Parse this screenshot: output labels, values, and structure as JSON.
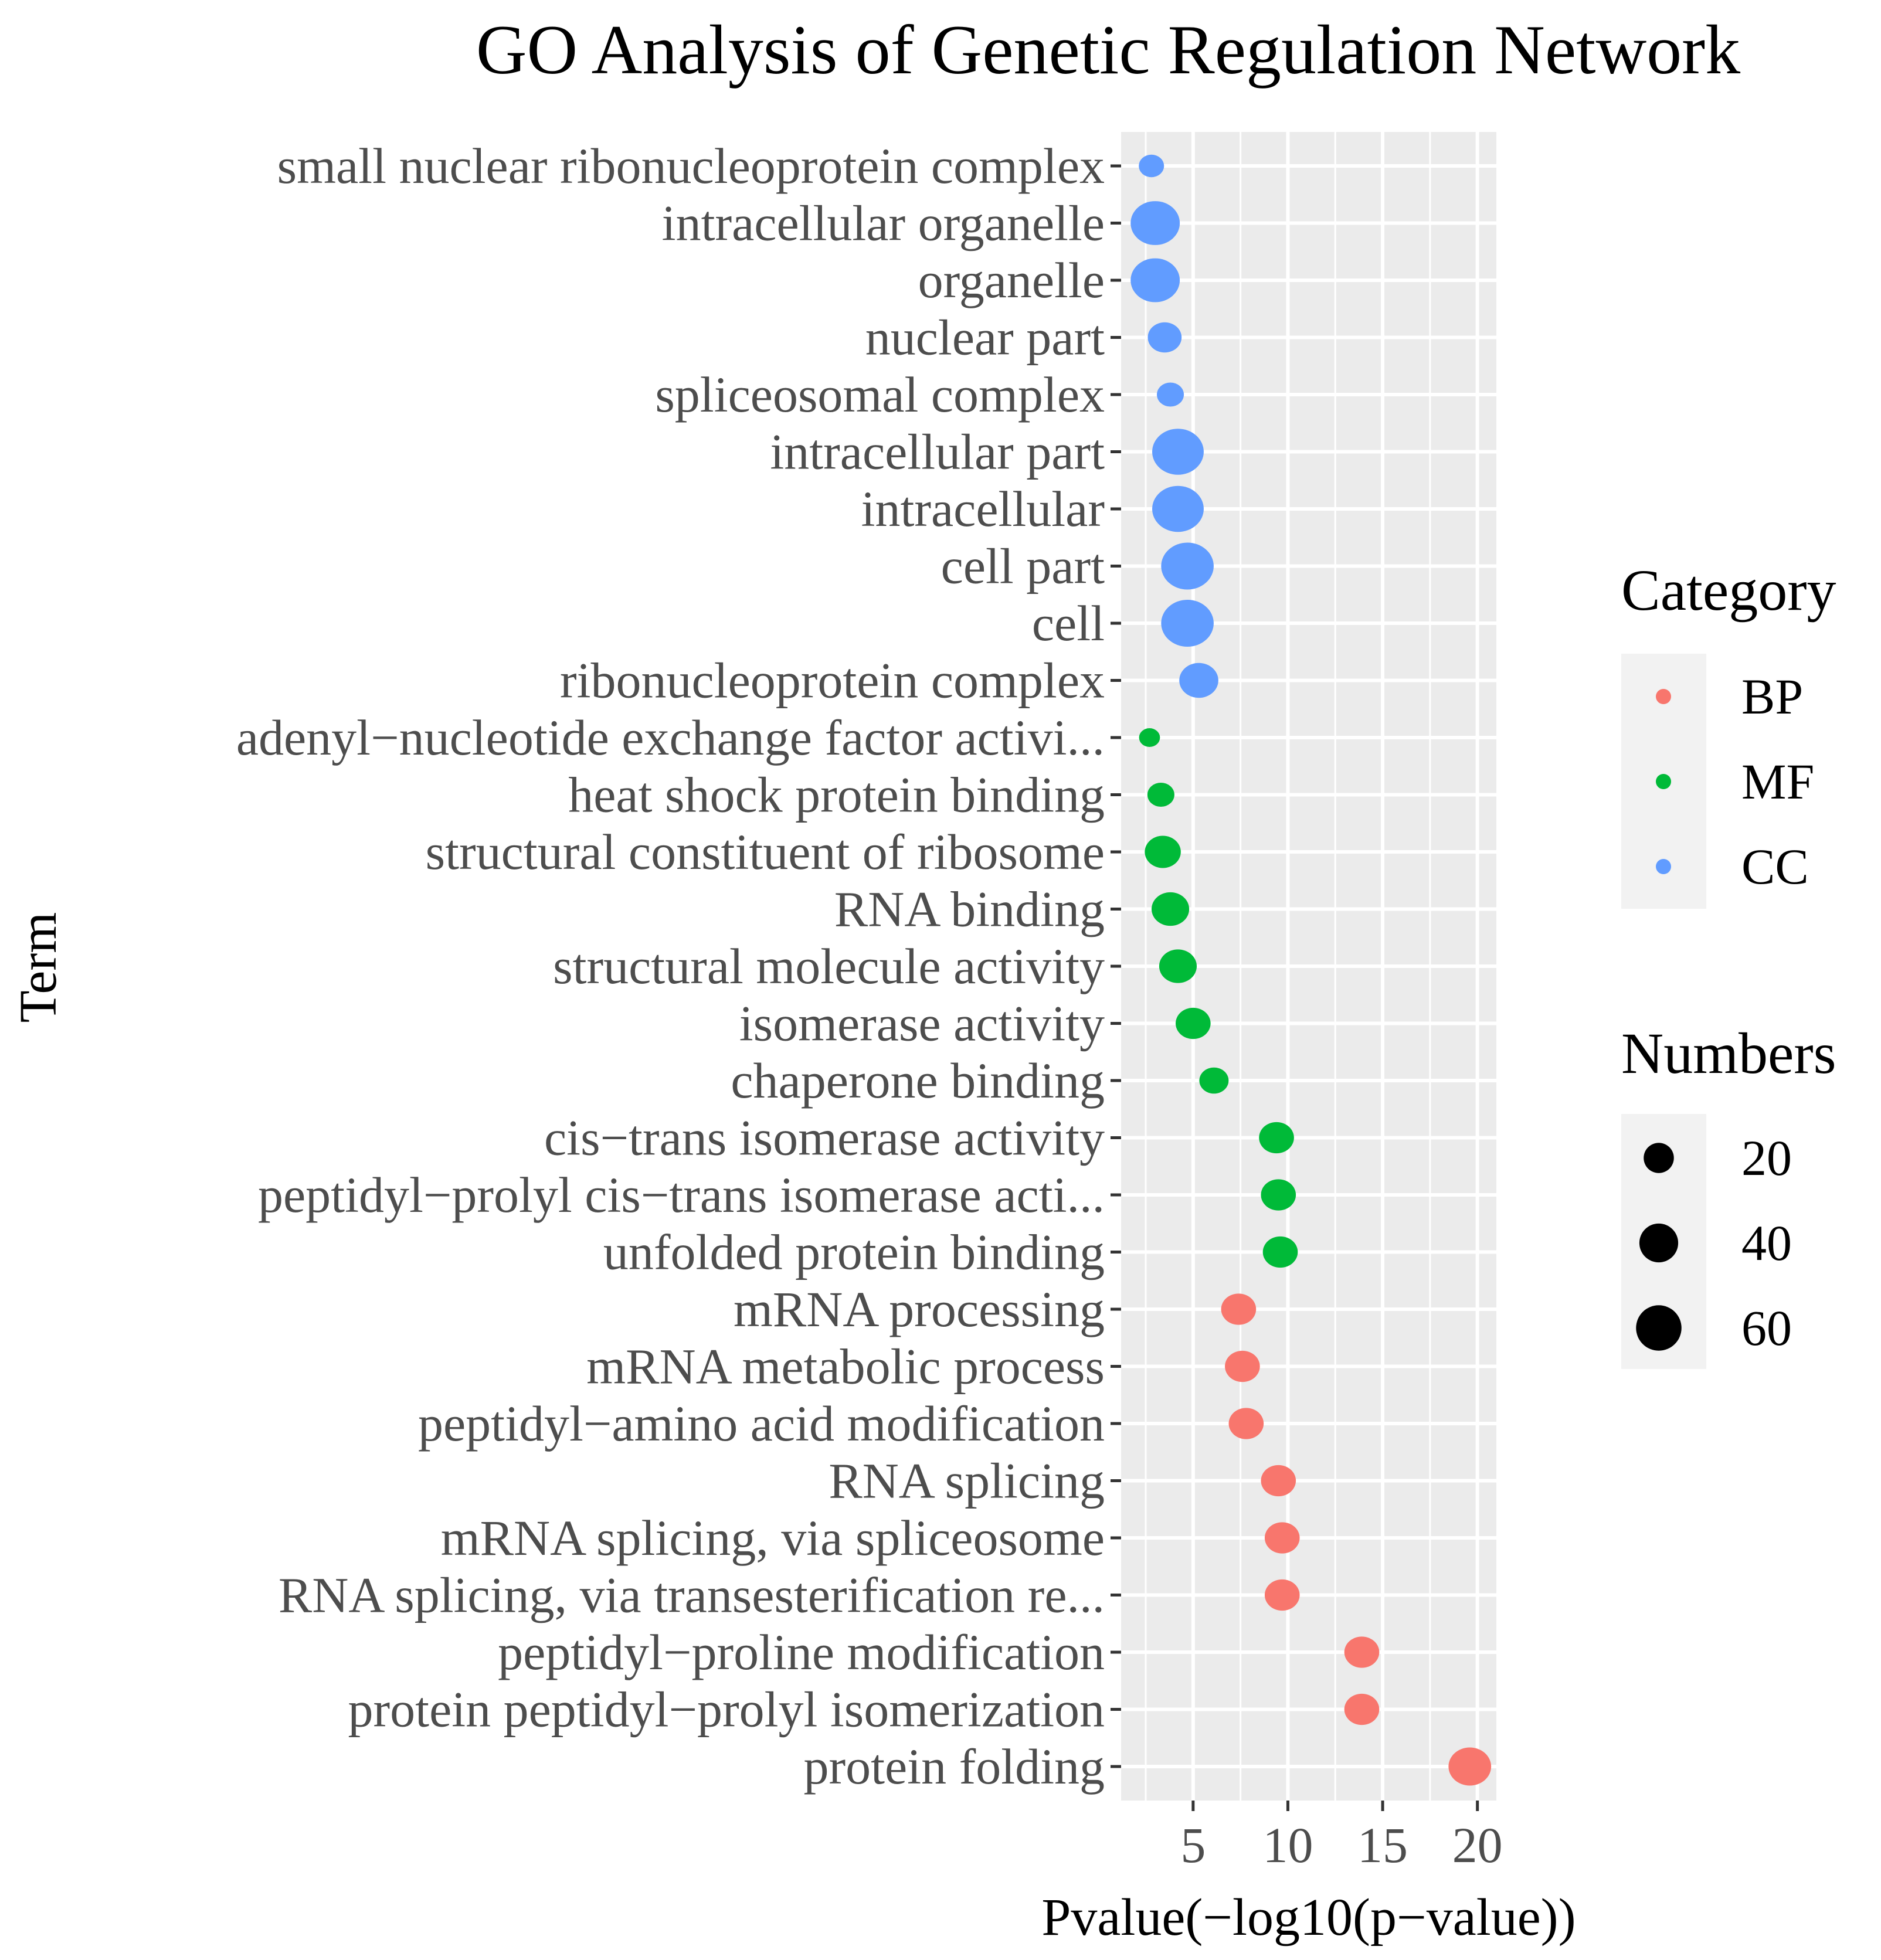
{
  "chart_data": {
    "type": "scatter",
    "title": "GO Analysis of Genetic Regulation Network",
    "xlabel": "Pvalue(−log10(p−value))",
    "ylabel": "Term",
    "xlim": [
      1.2,
      21.0
    ],
    "xticks": [
      5,
      10,
      15,
      20
    ],
    "xtick_labels": [
      "5",
      "10",
      "15",
      "20"
    ],
    "grid": true,
    "legend": {
      "placement": "right",
      "category_title": "Category",
      "categories": [
        {
          "name": "BP",
          "color": "#F8766D"
        },
        {
          "name": "MF",
          "color": "#00BA38"
        },
        {
          "name": "CC",
          "color": "#619CFF"
        }
      ],
      "size_title": "Numbers",
      "size_entries": [
        {
          "label": "20",
          "value": 20
        },
        {
          "label": "40",
          "value": 40
        },
        {
          "label": "60",
          "value": 60
        }
      ]
    },
    "terms": [
      {
        "term": "small nuclear ribonucleoprotein complex",
        "category": "CC",
        "pvalue": 2.8,
        "numbers": 8
      },
      {
        "term": "intracellular organelle",
        "category": "CC",
        "pvalue": 3.0,
        "numbers": 55
      },
      {
        "term": "organelle",
        "category": "CC",
        "pvalue": 3.0,
        "numbers": 55
      },
      {
        "term": "nuclear part",
        "category": "CC",
        "pvalue": 3.5,
        "numbers": 20
      },
      {
        "term": "spliceosomal complex",
        "category": "CC",
        "pvalue": 3.8,
        "numbers": 10
      },
      {
        "term": "intracellular part",
        "category": "CC",
        "pvalue": 4.2,
        "numbers": 62
      },
      {
        "term": "intracellular",
        "category": "CC",
        "pvalue": 4.2,
        "numbers": 62
      },
      {
        "term": "cell part",
        "category": "CC",
        "pvalue": 4.7,
        "numbers": 65
      },
      {
        "term": "cell",
        "category": "CC",
        "pvalue": 4.7,
        "numbers": 65
      },
      {
        "term": "ribonucleoprotein complex",
        "category": "CC",
        "pvalue": 5.3,
        "numbers": 30
      },
      {
        "term": "adenyl−nucleotide exchange factor activi...",
        "category": "MF",
        "pvalue": 2.7,
        "numbers": 4
      },
      {
        "term": "heat shock protein binding",
        "category": "MF",
        "pvalue": 3.3,
        "numbers": 10
      },
      {
        "term": "structural constituent of ribosome",
        "category": "MF",
        "pvalue": 3.4,
        "numbers": 24
      },
      {
        "term": "RNA binding",
        "category": "MF",
        "pvalue": 3.8,
        "numbers": 27
      },
      {
        "term": "structural molecule activity",
        "category": "MF",
        "pvalue": 4.2,
        "numbers": 27
      },
      {
        "term": "isomerase activity",
        "category": "MF",
        "pvalue": 5.0,
        "numbers": 22
      },
      {
        "term": "chaperone binding",
        "category": "MF",
        "pvalue": 6.1,
        "numbers": 13
      },
      {
        "term": "cis−trans isomerase activity",
        "category": "MF",
        "pvalue": 9.4,
        "numbers": 22
      },
      {
        "term": "peptidyl−prolyl cis−trans isomerase acti...",
        "category": "MF",
        "pvalue": 9.5,
        "numbers": 22
      },
      {
        "term": "unfolded protein binding",
        "category": "MF",
        "pvalue": 9.6,
        "numbers": 22
      },
      {
        "term": "mRNA processing",
        "category": "BP",
        "pvalue": 7.4,
        "numbers": 22
      },
      {
        "term": "mRNA metabolic process",
        "category": "BP",
        "pvalue": 7.6,
        "numbers": 22
      },
      {
        "term": "peptidyl−amino acid modification",
        "category": "BP",
        "pvalue": 7.8,
        "numbers": 22
      },
      {
        "term": "RNA splicing",
        "category": "BP",
        "pvalue": 9.5,
        "numbers": 22
      },
      {
        "term": "mRNA splicing, via spliceosome",
        "category": "BP",
        "pvalue": 9.7,
        "numbers": 22
      },
      {
        "term": "RNA splicing, via transesterification re...",
        "category": "BP",
        "pvalue": 9.7,
        "numbers": 22
      },
      {
        "term": "peptidyl−proline modification",
        "category": "BP",
        "pvalue": 13.9,
        "numbers": 22
      },
      {
        "term": "protein peptidyl−prolyl isomerization",
        "category": "BP",
        "pvalue": 13.9,
        "numbers": 22
      },
      {
        "term": "protein folding",
        "category": "BP",
        "pvalue": 19.6,
        "numbers": 38
      }
    ]
  }
}
